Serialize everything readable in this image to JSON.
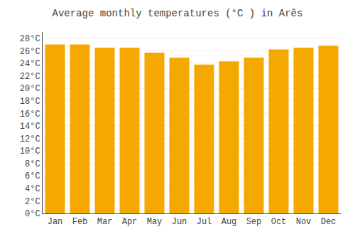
{
  "chart_data": {
    "type": "bar",
    "title": "Average monthly temperatures (°C ) in Arês",
    "categories": [
      "Jan",
      "Feb",
      "Mar",
      "Apr",
      "May",
      "Jun",
      "Jul",
      "Aug",
      "Sep",
      "Oct",
      "Nov",
      "Dec"
    ],
    "values": [
      27.0,
      27.0,
      26.5,
      26.5,
      25.7,
      24.9,
      23.8,
      24.3,
      24.9,
      26.2,
      26.5,
      26.8
    ],
    "color": "#F5A800",
    "ylim": [
      0,
      29
    ],
    "yticks": [
      {
        "value": 0,
        "label": "0°C"
      },
      {
        "value": 2,
        "label": "2°C"
      },
      {
        "value": 4,
        "label": "4°C"
      },
      {
        "value": 6,
        "label": "6°C"
      },
      {
        "value": 8,
        "label": "8°C"
      },
      {
        "value": 10,
        "label": "10°C"
      },
      {
        "value": 12,
        "label": "12°C"
      },
      {
        "value": 14,
        "label": "14°C"
      },
      {
        "value": 16,
        "label": "16°C"
      },
      {
        "value": 18,
        "label": "18°C"
      },
      {
        "value": 20,
        "label": "20°C"
      },
      {
        "value": 22,
        "label": "22°C"
      },
      {
        "value": 24,
        "label": "24°C"
      },
      {
        "value": 26,
        "label": "26°C"
      },
      {
        "value": 28,
        "label": "28°C"
      }
    ],
    "grid": true
  }
}
